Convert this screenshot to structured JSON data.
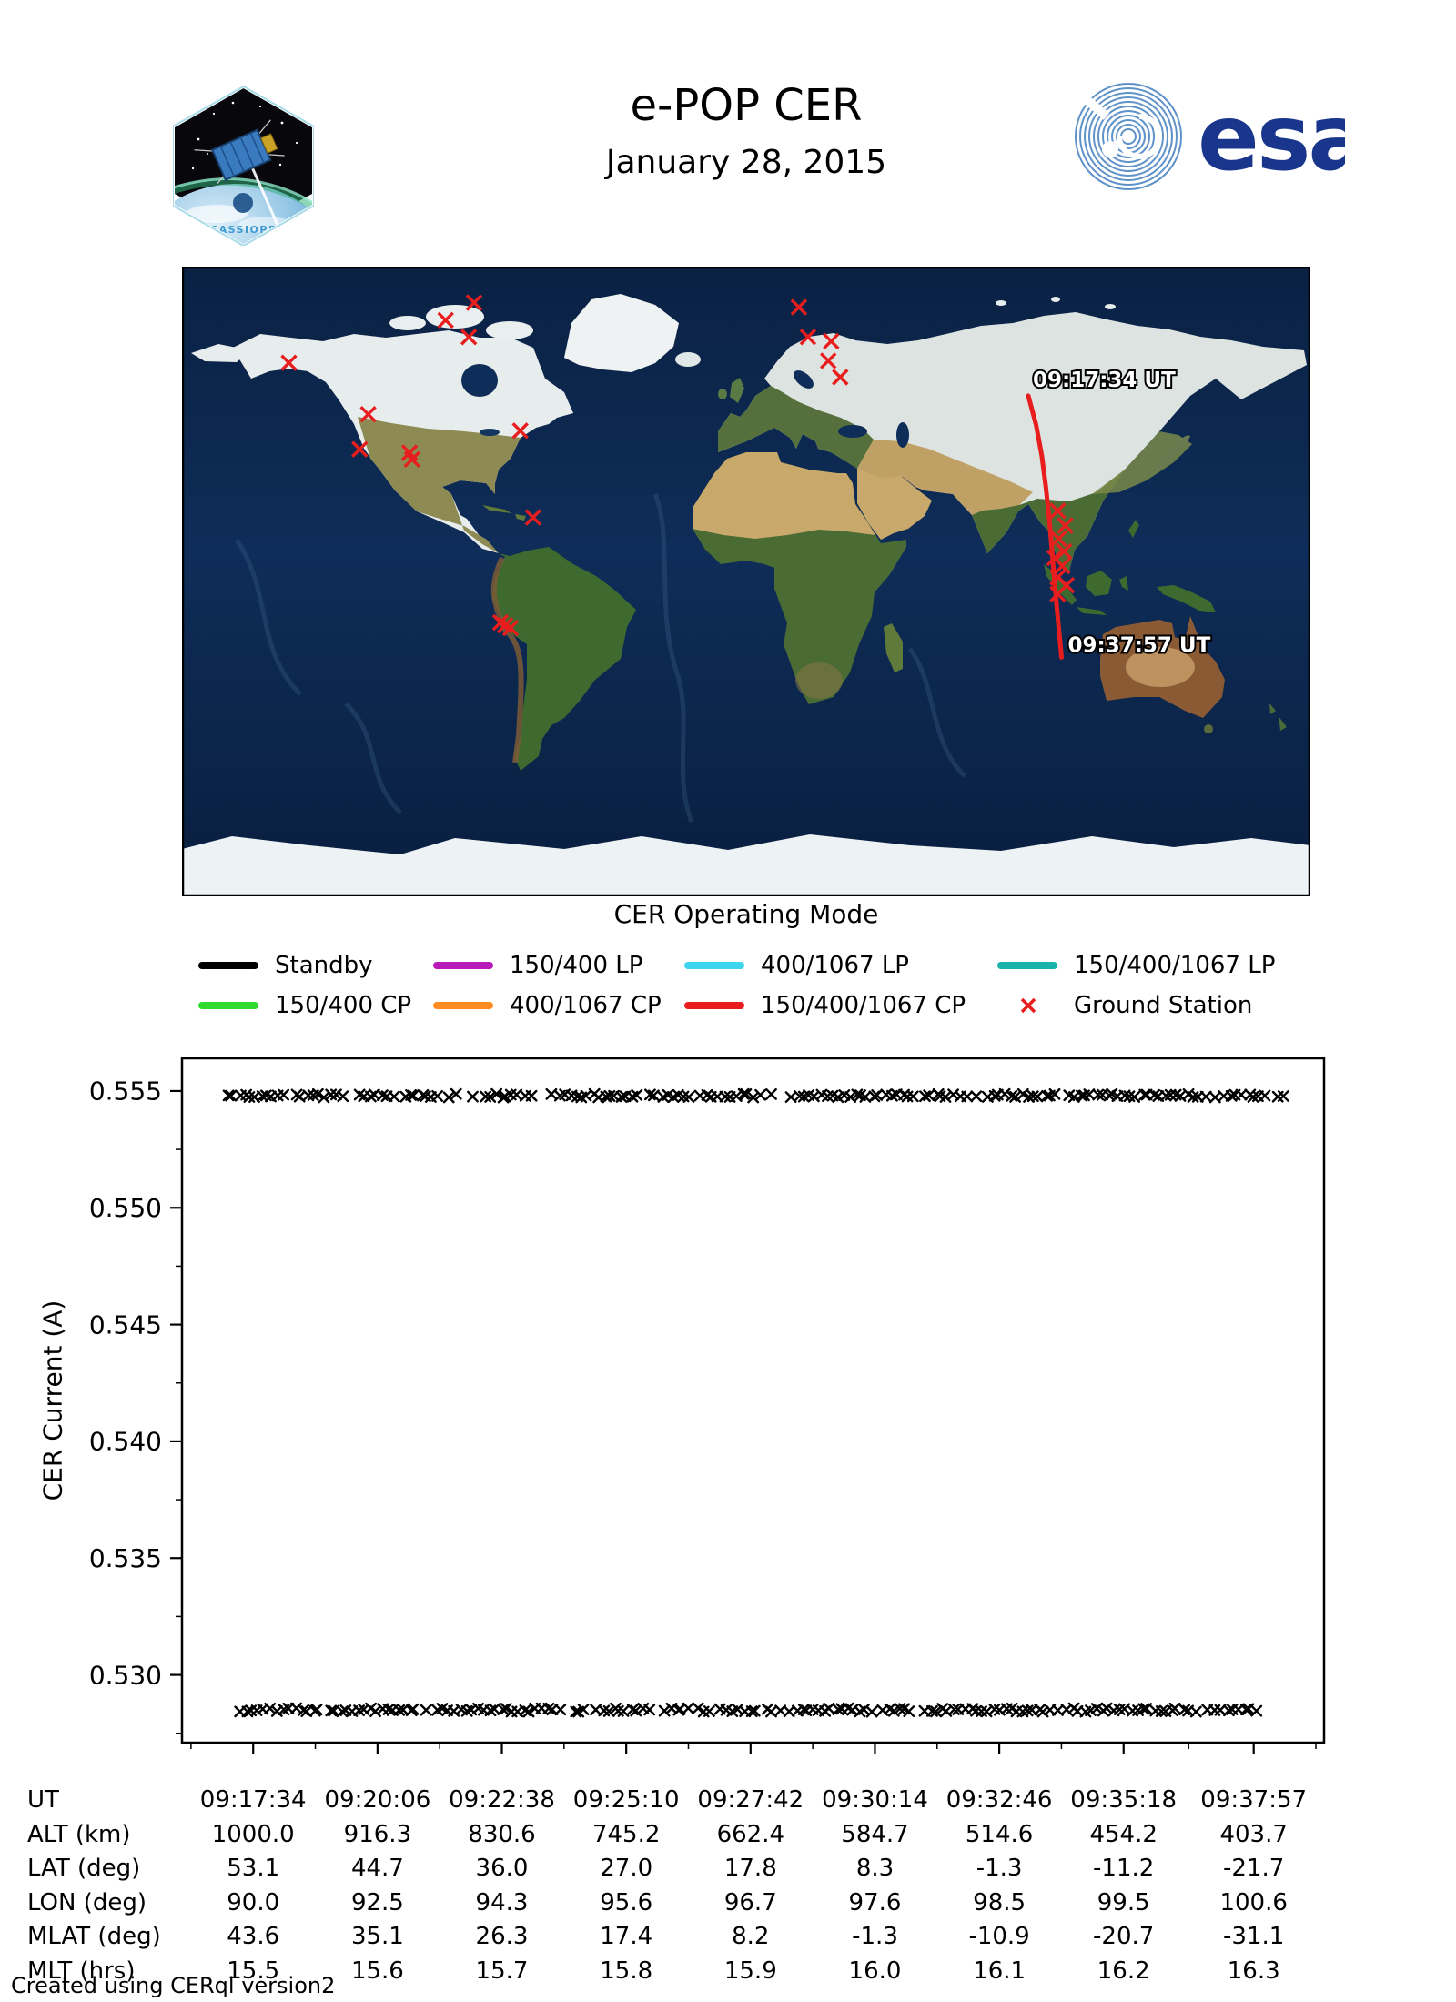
{
  "header": {
    "title": "e-POP CER",
    "date": "January 28, 2015",
    "patch_label": "CASSIOPE",
    "esa_label": "esa"
  },
  "map": {
    "start_time_label": "09:17:34 UT",
    "end_time_label": "09:37:57 UT",
    "track_color": "#e81e1e",
    "station_color": "#e81e1e",
    "bounds": {
      "lon_min": -180,
      "lon_max": 180,
      "lat_min": -90,
      "lat_max": 90
    },
    "track_points": [
      {
        "lon": 90.0,
        "lat": 53.1
      },
      {
        "lon": 92.5,
        "lat": 44.7
      },
      {
        "lon": 94.3,
        "lat": 36.0
      },
      {
        "lon": 95.6,
        "lat": 27.0
      },
      {
        "lon": 96.7,
        "lat": 17.8
      },
      {
        "lon": 97.6,
        "lat": 8.3
      },
      {
        "lon": 98.5,
        "lat": -1.3
      },
      {
        "lon": 99.5,
        "lat": -11.2
      },
      {
        "lon": 100.6,
        "lat": -21.7
      }
    ],
    "ground_stations": [
      {
        "lon": -86.8,
        "lat": 79.7
      },
      {
        "lon": -95.9,
        "lat": 74.7
      },
      {
        "lon": -88.5,
        "lat": 69.9
      },
      {
        "lon": -145.9,
        "lat": 62.5
      },
      {
        "lon": 16.8,
        "lat": 78.4
      },
      {
        "lon": 19.7,
        "lat": 69.9
      },
      {
        "lon": 27.1,
        "lat": 68.7
      },
      {
        "lon": 26.2,
        "lat": 63.1
      },
      {
        "lon": 30.0,
        "lat": 58.4
      },
      {
        "lon": -120.6,
        "lat": 47.8
      },
      {
        "lon": -123.3,
        "lat": 37.8
      },
      {
        "lon": -107.4,
        "lat": 36.8
      },
      {
        "lon": -106.6,
        "lat": 34.9
      },
      {
        "lon": -72.1,
        "lat": 43.1
      },
      {
        "lon": -68.0,
        "lat": 18.3
      },
      {
        "lon": -78.4,
        "lat": -11.7
      },
      {
        "lon": -76.9,
        "lat": -12.5
      },
      {
        "lon": -75.2,
        "lat": -13.3
      },
      {
        "lon": 99.4,
        "lat": 20.2
      },
      {
        "lon": 101.8,
        "lat": 16.0
      },
      {
        "lon": 99.7,
        "lat": 12.2
      },
      {
        "lon": 101.4,
        "lat": 8.6
      },
      {
        "lon": 98.4,
        "lat": 6.7
      },
      {
        "lon": 100.8,
        "lat": 4.4
      },
      {
        "lon": 99.4,
        "lat": 1.2
      },
      {
        "lon": 102.2,
        "lat": -1.1
      },
      {
        "lon": 99.4,
        "lat": -3.6
      }
    ]
  },
  "legend": {
    "title": "CER Operating Mode",
    "entries": [
      {
        "label": "Standby",
        "color": "#000000",
        "marker": "line"
      },
      {
        "label": "150/400 CP",
        "color": "#2edb2e",
        "marker": "line"
      },
      {
        "label": "150/400 LP",
        "color": "#b81bb8",
        "marker": "line"
      },
      {
        "label": "400/1067 CP",
        "color": "#ff8c22",
        "marker": "line"
      },
      {
        "label": "400/1067 LP",
        "color": "#3fd4ee",
        "marker": "line"
      },
      {
        "label": "150/400/1067 CP",
        "color": "#e81e1e",
        "marker": "line"
      },
      {
        "label": "150/400/1067 LP",
        "color": "#1ab3aa",
        "marker": "line"
      },
      {
        "label": "Ground Station",
        "color": "#e81e1e",
        "marker": "x"
      }
    ]
  },
  "chart_data": {
    "type": "scatter",
    "title": "e-POP CER, January 28, 2015",
    "xlabel": "UT",
    "ylabel": "CER Current (A)",
    "marker": "x",
    "color": "#000000",
    "grid": false,
    "ylim": [
      0.5271,
      0.5564
    ],
    "yticks": [
      "0.530",
      "0.535",
      "0.540",
      "0.545",
      "0.550",
      "0.555"
    ],
    "y_minor_ticks": [
      0.5525,
      0.5475,
      0.5425,
      0.5375,
      0.5325,
      0.5275
    ],
    "x_ticks": [
      "09:17:34",
      "09:20:06",
      "09:22:38",
      "09:25:10",
      "09:27:42",
      "09:30:14",
      "09:32:46",
      "09:35:18",
      "09:37:57"
    ],
    "x_axis_range": [
      "09:16:07",
      "09:39:23"
    ],
    "series": [
      {
        "name": "CER current upper band",
        "value_A": 0.5548,
        "time_segments": [
          [
            "09:17:02",
            "09:19:25"
          ],
          [
            "09:19:35",
            "09:21:46"
          ],
          [
            "09:21:55",
            "09:23:14"
          ],
          [
            "09:23:40",
            "09:28:18"
          ],
          [
            "09:28:34",
            "09:32:40"
          ],
          [
            "09:32:46",
            "09:37:04"
          ],
          [
            "09:37:08",
            "09:38:33"
          ]
        ]
      },
      {
        "name": "CER current lower band",
        "value_A": 0.5285,
        "time_segments": [
          [
            "09:17:05",
            "09:17:54"
          ],
          [
            "09:18:05",
            "09:19:11"
          ],
          [
            "09:19:14",
            "09:23:50"
          ],
          [
            "09:24:06",
            "09:26:12"
          ],
          [
            "09:26:18",
            "09:31:02"
          ],
          [
            "09:31:15",
            "09:37:04"
          ],
          [
            "09:37:10",
            "09:38:05"
          ]
        ]
      }
    ]
  },
  "table": {
    "rows": [
      {
        "label": "UT",
        "values": [
          "09:17:34",
          "09:20:06",
          "09:22:38",
          "09:25:10",
          "09:27:42",
          "09:30:14",
          "09:32:46",
          "09:35:18",
          "09:37:57"
        ]
      },
      {
        "label": "ALT (km)",
        "values": [
          "1000.0",
          "916.3",
          "830.6",
          "745.2",
          "662.4",
          "584.7",
          "514.6",
          "454.2",
          "403.7"
        ]
      },
      {
        "label": "LAT (deg)",
        "values": [
          "53.1",
          "44.7",
          "36.0",
          "27.0",
          "17.8",
          "8.3",
          "-1.3",
          "-11.2",
          "-21.7"
        ]
      },
      {
        "label": "LON (deg)",
        "values": [
          "90.0",
          "92.5",
          "94.3",
          "95.6",
          "96.7",
          "97.6",
          "98.5",
          "99.5",
          "100.6"
        ]
      },
      {
        "label": "MLAT (deg)",
        "values": [
          "43.6",
          "35.1",
          "26.3",
          "17.4",
          "8.2",
          "-1.3",
          "-10.9",
          "-20.7",
          "-31.1"
        ]
      },
      {
        "label": "MLT (hrs)",
        "values": [
          "15.5",
          "15.6",
          "15.7",
          "15.8",
          "15.9",
          "16.0",
          "16.1",
          "16.2",
          "16.3"
        ]
      }
    ]
  },
  "footer": "Created using CERql version2"
}
